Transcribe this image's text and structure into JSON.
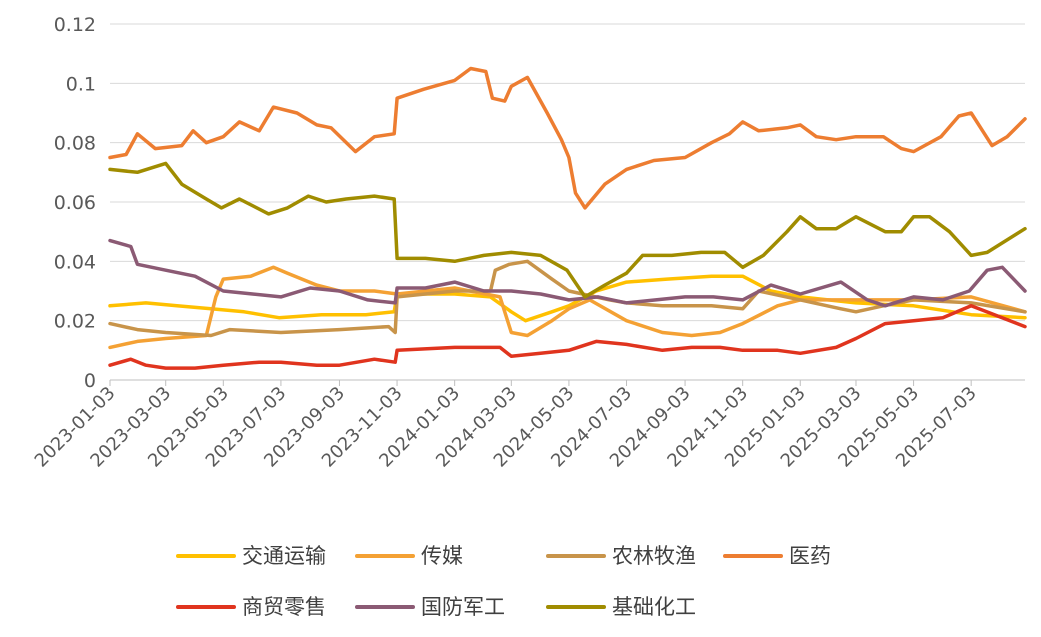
{
  "chart_data": {
    "type": "line",
    "ylim": [
      0,
      0.12
    ],
    "yticks": [
      "0",
      "0.02",
      "0.04",
      "0.06",
      "0.08",
      "0.1",
      "0.12"
    ],
    "x_tick_labels": [
      "2023-01-03",
      "2023-03-03",
      "2023-05-03",
      "2023-07-03",
      "2023-09-03",
      "2023-11-03",
      "2024-01-03",
      "2024-03-03",
      "2024-05-03",
      "2024-07-03",
      "2024-09-03",
      "2024-11-03",
      "2025-01-03",
      "2025-03-03",
      "2025-05-03",
      "2025-07-03"
    ],
    "x_range": [
      "2023-01-03",
      "2025-08-29"
    ],
    "grid": "horizontal",
    "legend_position": "bottom",
    "series": [
      {
        "name": "交通运输",
        "color": "#FFC000",
        "points": [
          [
            "2023-01-03",
            0.025
          ],
          [
            "2023-02-10",
            0.026
          ],
          [
            "2023-03-15",
            0.025
          ],
          [
            "2023-04-20",
            0.024
          ],
          [
            "2023-05-25",
            0.023
          ],
          [
            "2023-07-01",
            0.021
          ],
          [
            "2023-08-15",
            0.022
          ],
          [
            "2023-10-01",
            0.022
          ],
          [
            "2023-10-31",
            0.023
          ],
          [
            "2023-11-03",
            0.029
          ],
          [
            "2024-01-03",
            0.029
          ],
          [
            "2024-02-10",
            0.028
          ],
          [
            "2024-03-03",
            0.023
          ],
          [
            "2024-03-18",
            0.02
          ],
          [
            "2024-04-15",
            0.023
          ],
          [
            "2024-05-03",
            0.025
          ],
          [
            "2024-06-01",
            0.03
          ],
          [
            "2024-07-03",
            0.033
          ],
          [
            "2024-08-15",
            0.034
          ],
          [
            "2024-10-01",
            0.035
          ],
          [
            "2024-11-03",
            0.035
          ],
          [
            "2024-12-03",
            0.03
          ],
          [
            "2025-01-03",
            0.028
          ],
          [
            "2025-03-03",
            0.026
          ],
          [
            "2025-05-03",
            0.025
          ],
          [
            "2025-07-03",
            0.022
          ],
          [
            "2025-08-29",
            0.021
          ]
        ]
      },
      {
        "name": "传媒",
        "color": "#F4A134",
        "points": [
          [
            "2023-01-03",
            0.011
          ],
          [
            "2023-02-01",
            0.013
          ],
          [
            "2023-03-03",
            0.014
          ],
          [
            "2023-04-15",
            0.015
          ],
          [
            "2023-04-25",
            0.028
          ],
          [
            "2023-05-03",
            0.034
          ],
          [
            "2023-06-01",
            0.035
          ],
          [
            "2023-06-25",
            0.038
          ],
          [
            "2023-07-10",
            0.036
          ],
          [
            "2023-08-10",
            0.032
          ],
          [
            "2023-09-03",
            0.03
          ],
          [
            "2023-10-10",
            0.03
          ],
          [
            "2023-11-03",
            0.029
          ],
          [
            "2024-01-03",
            0.031
          ],
          [
            "2024-02-20",
            0.028
          ],
          [
            "2024-03-03",
            0.016
          ],
          [
            "2024-03-20",
            0.015
          ],
          [
            "2024-04-15",
            0.02
          ],
          [
            "2024-05-03",
            0.024
          ],
          [
            "2024-05-25",
            0.027
          ],
          [
            "2024-07-03",
            0.02
          ],
          [
            "2024-08-10",
            0.016
          ],
          [
            "2024-09-10",
            0.015
          ],
          [
            "2024-10-10",
            0.016
          ],
          [
            "2024-11-03",
            0.019
          ],
          [
            "2024-12-10",
            0.025
          ],
          [
            "2025-01-03",
            0.027
          ],
          [
            "2025-03-03",
            0.027
          ],
          [
            "2025-05-03",
            0.027
          ],
          [
            "2025-07-03",
            0.028
          ],
          [
            "2025-08-29",
            0.023
          ]
        ]
      },
      {
        "name": "农林牧渔",
        "color": "#C8944A",
        "points": [
          [
            "2023-01-03",
            0.019
          ],
          [
            "2023-02-01",
            0.017
          ],
          [
            "2023-03-03",
            0.016
          ],
          [
            "2023-04-20",
            0.015
          ],
          [
            "2023-05-10",
            0.017
          ],
          [
            "2023-07-03",
            0.016
          ],
          [
            "2023-09-03",
            0.017
          ],
          [
            "2023-10-25",
            0.018
          ],
          [
            "2023-11-01",
            0.016
          ],
          [
            "2023-11-03",
            0.028
          ],
          [
            "2024-01-03",
            0.03
          ],
          [
            "2024-02-10",
            0.03
          ],
          [
            "2024-02-15",
            0.037
          ],
          [
            "2024-03-01",
            0.039
          ],
          [
            "2024-03-20",
            0.04
          ],
          [
            "2024-04-15",
            0.034
          ],
          [
            "2024-05-03",
            0.03
          ],
          [
            "2024-06-15",
            0.027
          ],
          [
            "2024-07-03",
            0.026
          ],
          [
            "2024-08-10",
            0.025
          ],
          [
            "2024-10-01",
            0.025
          ],
          [
            "2024-11-03",
            0.024
          ],
          [
            "2024-11-20",
            0.03
          ],
          [
            "2025-01-03",
            0.027
          ],
          [
            "2025-02-15",
            0.024
          ],
          [
            "2025-03-03",
            0.023
          ],
          [
            "2025-04-01",
            0.025
          ],
          [
            "2025-05-03",
            0.027
          ],
          [
            "2025-07-03",
            0.026
          ],
          [
            "2025-08-29",
            0.023
          ]
        ]
      },
      {
        "name": "医药",
        "color": "#ED7D31",
        "points": [
          [
            "2023-01-03",
            0.075
          ],
          [
            "2023-01-20",
            0.076
          ],
          [
            "2023-02-01",
            0.083
          ],
          [
            "2023-02-20",
            0.078
          ],
          [
            "2023-03-20",
            0.079
          ],
          [
            "2023-04-01",
            0.084
          ],
          [
            "2023-04-15",
            0.08
          ],
          [
            "2023-05-03",
            0.082
          ],
          [
            "2023-05-20",
            0.087
          ],
          [
            "2023-06-10",
            0.084
          ],
          [
            "2023-06-25",
            0.092
          ],
          [
            "2023-07-20",
            0.09
          ],
          [
            "2023-08-10",
            0.086
          ],
          [
            "2023-08-25",
            0.085
          ],
          [
            "2023-09-20",
            0.077
          ],
          [
            "2023-10-10",
            0.082
          ],
          [
            "2023-10-31",
            0.083
          ],
          [
            "2023-11-03",
            0.095
          ],
          [
            "2023-12-01",
            0.098
          ],
          [
            "2024-01-03",
            0.101
          ],
          [
            "2024-01-20",
            0.105
          ],
          [
            "2024-02-05",
            0.104
          ],
          [
            "2024-02-12",
            0.095
          ],
          [
            "2024-02-25",
            0.094
          ],
          [
            "2024-03-03",
            0.099
          ],
          [
            "2024-03-20",
            0.102
          ],
          [
            "2024-04-10",
            0.09
          ],
          [
            "2024-04-25",
            0.081
          ],
          [
            "2024-05-03",
            0.075
          ],
          [
            "2024-05-10",
            0.063
          ],
          [
            "2024-05-20",
            0.058
          ],
          [
            "2024-06-10",
            0.066
          ],
          [
            "2024-07-03",
            0.071
          ],
          [
            "2024-08-01",
            0.074
          ],
          [
            "2024-09-03",
            0.075
          ],
          [
            "2024-10-01",
            0.08
          ],
          [
            "2024-10-20",
            0.083
          ],
          [
            "2024-11-03",
            0.087
          ],
          [
            "2024-11-20",
            0.084
          ],
          [
            "2024-12-20",
            0.085
          ],
          [
            "2025-01-03",
            0.086
          ],
          [
            "2025-01-20",
            0.082
          ],
          [
            "2025-02-10",
            0.081
          ],
          [
            "2025-03-03",
            0.082
          ],
          [
            "2025-04-01",
            0.082
          ],
          [
            "2025-04-20",
            0.078
          ],
          [
            "2025-05-03",
            0.077
          ],
          [
            "2025-06-01",
            0.082
          ],
          [
            "2025-06-20",
            0.089
          ],
          [
            "2025-07-03",
            0.09
          ],
          [
            "2025-07-25",
            0.079
          ],
          [
            "2025-08-10",
            0.082
          ],
          [
            "2025-08-29",
            0.088
          ]
        ]
      },
      {
        "name": "商贸零售",
        "color": "#E0341E",
        "points": [
          [
            "2023-01-03",
            0.005
          ],
          [
            "2023-01-25",
            0.007
          ],
          [
            "2023-02-10",
            0.005
          ],
          [
            "2023-03-03",
            0.004
          ],
          [
            "2023-04-03",
            0.004
          ],
          [
            "2023-05-03",
            0.005
          ],
          [
            "2023-06-10",
            0.006
          ],
          [
            "2023-07-03",
            0.006
          ],
          [
            "2023-08-10",
            0.005
          ],
          [
            "2023-09-03",
            0.005
          ],
          [
            "2023-10-10",
            0.007
          ],
          [
            "2023-11-01",
            0.006
          ],
          [
            "2023-11-03",
            0.01
          ],
          [
            "2024-01-03",
            0.011
          ],
          [
            "2024-02-20",
            0.011
          ],
          [
            "2024-03-03",
            0.008
          ],
          [
            "2024-04-03",
            0.009
          ],
          [
            "2024-05-03",
            0.01
          ],
          [
            "2024-06-01",
            0.013
          ],
          [
            "2024-07-03",
            0.012
          ],
          [
            "2024-08-10",
            0.01
          ],
          [
            "2024-09-10",
            0.011
          ],
          [
            "2024-10-10",
            0.011
          ],
          [
            "2024-11-03",
            0.01
          ],
          [
            "2024-12-10",
            0.01
          ],
          [
            "2025-01-03",
            0.009
          ],
          [
            "2025-02-10",
            0.011
          ],
          [
            "2025-03-03",
            0.014
          ],
          [
            "2025-04-03",
            0.019
          ],
          [
            "2025-05-03",
            0.02
          ],
          [
            "2025-06-03",
            0.021
          ],
          [
            "2025-07-03",
            0.025
          ],
          [
            "2025-08-29",
            0.018
          ]
        ]
      },
      {
        "name": "国防军工",
        "color": "#8B5A74",
        "points": [
          [
            "2023-01-03",
            0.047
          ],
          [
            "2023-01-25",
            0.045
          ],
          [
            "2023-02-01",
            0.039
          ],
          [
            "2023-03-03",
            0.037
          ],
          [
            "2023-04-03",
            0.035
          ],
          [
            "2023-05-03",
            0.03
          ],
          [
            "2023-06-03",
            0.029
          ],
          [
            "2023-07-03",
            0.028
          ],
          [
            "2023-08-03",
            0.031
          ],
          [
            "2023-09-03",
            0.03
          ],
          [
            "2023-10-03",
            0.027
          ],
          [
            "2023-11-01",
            0.026
          ],
          [
            "2023-11-03",
            0.031
          ],
          [
            "2023-12-03",
            0.031
          ],
          [
            "2024-01-03",
            0.033
          ],
          [
            "2024-02-03",
            0.03
          ],
          [
            "2024-03-03",
            0.03
          ],
          [
            "2024-04-03",
            0.029
          ],
          [
            "2024-05-03",
            0.027
          ],
          [
            "2024-06-03",
            0.028
          ],
          [
            "2024-07-03",
            0.026
          ],
          [
            "2024-08-03",
            0.027
          ],
          [
            "2024-09-03",
            0.028
          ],
          [
            "2024-10-03",
            0.028
          ],
          [
            "2024-11-03",
            0.027
          ],
          [
            "2024-12-03",
            0.032
          ],
          [
            "2025-01-03",
            0.029
          ],
          [
            "2025-02-15",
            0.033
          ],
          [
            "2025-03-15",
            0.027
          ],
          [
            "2025-04-03",
            0.025
          ],
          [
            "2025-05-03",
            0.028
          ],
          [
            "2025-06-03",
            0.027
          ],
          [
            "2025-07-01",
            0.03
          ],
          [
            "2025-07-20",
            0.037
          ],
          [
            "2025-08-05",
            0.038
          ],
          [
            "2025-08-29",
            0.03
          ]
        ]
      },
      {
        "name": "基础化工",
        "color": "#A08C00",
        "points": [
          [
            "2023-01-03",
            0.071
          ],
          [
            "2023-02-01",
            0.07
          ],
          [
            "2023-03-03",
            0.073
          ],
          [
            "2023-03-20",
            0.066
          ],
          [
            "2023-04-15",
            0.061
          ],
          [
            "2023-05-01",
            0.058
          ],
          [
            "2023-05-20",
            0.061
          ],
          [
            "2023-06-20",
            0.056
          ],
          [
            "2023-07-10",
            0.058
          ],
          [
            "2023-08-01",
            0.062
          ],
          [
            "2023-08-20",
            0.06
          ],
          [
            "2023-09-10",
            0.061
          ],
          [
            "2023-10-10",
            0.062
          ],
          [
            "2023-10-31",
            0.061
          ],
          [
            "2023-11-03",
            0.041
          ],
          [
            "2023-12-03",
            0.041
          ],
          [
            "2024-01-03",
            0.04
          ],
          [
            "2024-02-03",
            0.042
          ],
          [
            "2024-03-03",
            0.043
          ],
          [
            "2024-04-03",
            0.042
          ],
          [
            "2024-05-01",
            0.037
          ],
          [
            "2024-05-20",
            0.028
          ],
          [
            "2024-06-10",
            0.032
          ],
          [
            "2024-07-03",
            0.036
          ],
          [
            "2024-07-20",
            0.042
          ],
          [
            "2024-08-20",
            0.042
          ],
          [
            "2024-09-20",
            0.043
          ],
          [
            "2024-10-15",
            0.043
          ],
          [
            "2024-11-03",
            0.038
          ],
          [
            "2024-11-25",
            0.042
          ],
          [
            "2024-12-20",
            0.05
          ],
          [
            "2025-01-03",
            0.055
          ],
          [
            "2025-01-20",
            0.051
          ],
          [
            "2025-02-10",
            0.051
          ],
          [
            "2025-03-03",
            0.055
          ],
          [
            "2025-04-03",
            0.05
          ],
          [
            "2025-04-20",
            0.05
          ],
          [
            "2025-05-03",
            0.055
          ],
          [
            "2025-05-20",
            0.055
          ],
          [
            "2025-06-10",
            0.05
          ],
          [
            "2025-07-03",
            0.042
          ],
          [
            "2025-07-20",
            0.043
          ],
          [
            "2025-08-29",
            0.051
          ]
        ]
      }
    ]
  }
}
